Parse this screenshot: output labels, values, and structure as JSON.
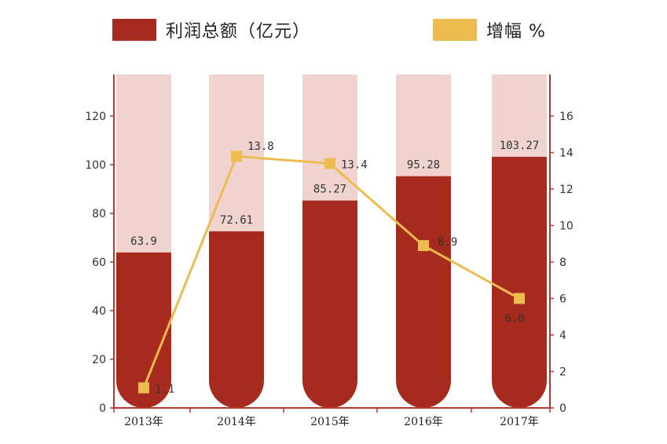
{
  "chart_data": {
    "type": "bar",
    "categories": [
      "2013年",
      "2014年",
      "2015年",
      "2016年",
      "2017年"
    ],
    "series": [
      {
        "name": "利润总额（亿元）",
        "type": "bar",
        "axis": "left",
        "values": [
          63.9,
          72.61,
          85.27,
          95.28,
          103.27
        ],
        "labels": [
          "63.9",
          "72.61",
          "85.27",
          "95.28",
          "103.27"
        ]
      },
      {
        "name": "增幅 %",
        "type": "line",
        "axis": "right",
        "values": [
          1.1,
          13.8,
          13.4,
          8.9,
          6.0
        ],
        "labels": [
          "1.1",
          "13.8",
          "13.4",
          "8.9",
          "6.0"
        ]
      }
    ],
    "y_left": {
      "ticks": [
        "0",
        "20",
        "40",
        "60",
        "80",
        "100",
        "120"
      ],
      "ylim": [
        0,
        135
      ]
    },
    "y_right": {
      "ticks": [
        "0",
        "2",
        "4",
        "6",
        "8",
        "10",
        "12",
        "14",
        "16"
      ],
      "ylim": [
        0,
        18
      ]
    },
    "legend_position": "top",
    "colors": {
      "bar": "#A72A1E",
      "bar_background": "#F0D3CF",
      "line": "#EDBC4F",
      "axis": "#B5372B"
    }
  }
}
